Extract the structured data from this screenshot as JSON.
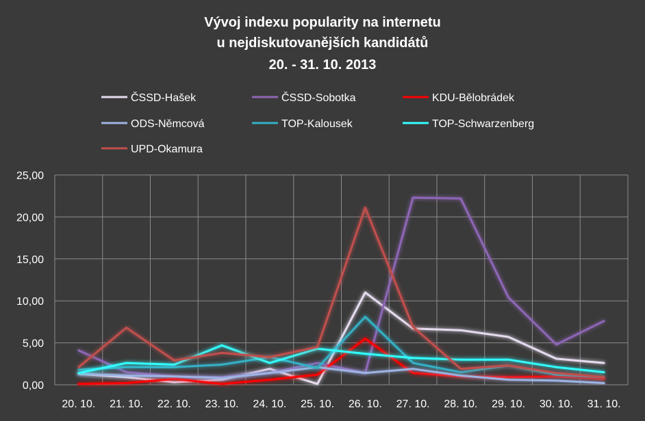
{
  "chart_data": {
    "type": "line",
    "title": [
      "Vývoj indexu popularity na internetu",
      "u nejdiskutovanějších kandidátů",
      "20. - 31. 10. 2013"
    ],
    "xlabel": "",
    "ylabel": "",
    "categories": [
      "20. 10.",
      "21. 10.",
      "22. 10.",
      "23. 10.",
      "24. 10.",
      "25. 10.",
      "26. 10.",
      "27. 10.",
      "28. 10.",
      "29. 10.",
      "30. 10.",
      "31. 10."
    ],
    "ylim": [
      0,
      25
    ],
    "yticks": [
      "0,00",
      "5,00",
      "10,00",
      "15,00",
      "20,00",
      "25,00"
    ],
    "grid": true,
    "legend_position": "top",
    "series": [
      {
        "name": "ČSSD-Hašek",
        "color": "#e6dcef",
        "values": [
          1.3,
          0.9,
          0.3,
          0.6,
          1.9,
          0.1,
          11.0,
          6.7,
          6.5,
          5.7,
          3.1,
          2.6
        ]
      },
      {
        "name": "ČSSD-Sobotka",
        "color": "#8e66b6",
        "values": [
          4.1,
          1.5,
          1.0,
          0.9,
          1.4,
          2.6,
          1.4,
          22.3,
          22.2,
          10.4,
          4.8,
          7.6
        ]
      },
      {
        "name": "KDU-Bělobrádek",
        "color": "#ff0000",
        "values": [
          0.1,
          0.2,
          0.7,
          0.1,
          0.6,
          1.2,
          5.5,
          1.4,
          1.0,
          0.9,
          1.0,
          0.7
        ]
      },
      {
        "name": "ODS-Němcová",
        "color": "#9db4e3",
        "values": [
          1.3,
          1.1,
          1.0,
          0.8,
          1.4,
          2.1,
          1.4,
          1.9,
          1.1,
          0.6,
          0.5,
          0.2
        ]
      },
      {
        "name": "TOP-Kalousek",
        "color": "#36b0c6",
        "values": [
          1.8,
          2.1,
          2.1,
          2.4,
          3.3,
          2.0,
          8.1,
          2.6,
          1.5,
          2.3,
          1.2,
          0.9
        ]
      },
      {
        "name": "TOP-Schwarzenberg",
        "color": "#33ffff",
        "values": [
          1.4,
          2.6,
          2.4,
          4.7,
          2.6,
          4.3,
          3.7,
          3.2,
          3.0,
          3.0,
          2.1,
          1.5
        ]
      },
      {
        "name": "UPD-Okamura",
        "color": "#c0504d",
        "values": [
          2.1,
          6.8,
          2.9,
          3.8,
          3.3,
          4.5,
          21.1,
          6.9,
          1.9,
          2.3,
          1.4,
          0.9
        ]
      }
    ]
  }
}
